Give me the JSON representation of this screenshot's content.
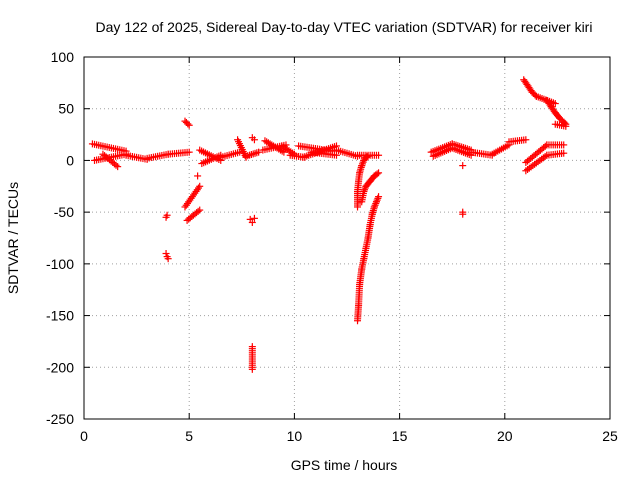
{
  "chart_data": {
    "type": "scatter",
    "title": "Day 122 of 2025, Sidereal Day-to-day VTEC variation (SDTVAR) for receiver kiri",
    "xlabel": "GPS time / hours",
    "ylabel": "SDTVAR / TECUs",
    "xlim": [
      0,
      25
    ],
    "ylim": [
      -250,
      100
    ],
    "xticks": [
      0,
      5,
      10,
      15,
      20,
      25
    ],
    "yticks": [
      -250,
      -200,
      -150,
      -100,
      -50,
      0,
      50,
      100
    ],
    "grid": true,
    "marker": "+",
    "marker_color": "#ff0000",
    "segments": [
      {
        "x0": 0.4,
        "y0": 16,
        "x1": 2.0,
        "y1": 9
      },
      {
        "x0": 0.5,
        "y0": 0,
        "x1": 2.0,
        "y1": 6
      },
      {
        "x0": 0.9,
        "y0": 6,
        "x1": 1.6,
        "y1": -6
      },
      {
        "x0": 2.0,
        "y0": 5,
        "x1": 3.0,
        "y1": 1
      },
      {
        "x0": 3.0,
        "y0": 2,
        "x1": 4.0,
        "y1": 6
      },
      {
        "x0": 4.0,
        "y0": 6,
        "x1": 5.0,
        "y1": 8
      },
      {
        "x0": 4.8,
        "y0": 38,
        "x1": 5.0,
        "y1": 34
      },
      {
        "x0": 4.8,
        "y0": -45,
        "x1": 5.5,
        "y1": -25
      },
      {
        "x0": 4.9,
        "y0": -58,
        "x1": 5.5,
        "y1": -48
      },
      {
        "x0": 5.5,
        "y0": 10,
        "x1": 6.5,
        "y1": 0
      },
      {
        "x0": 5.6,
        "y0": -3,
        "x1": 6.5,
        "y1": 5
      },
      {
        "x0": 6.5,
        "y0": 3,
        "x1": 7.4,
        "y1": 8
      },
      {
        "x0": 7.3,
        "y0": 20,
        "x1": 7.7,
        "y1": 3
      },
      {
        "x0": 7.7,
        "y0": 4,
        "x1": 8.3,
        "y1": 8
      },
      {
        "x0": 8.0,
        "y0": -180,
        "x1": 8.0,
        "y1": -202
      },
      {
        "x0": 8.5,
        "y0": 10,
        "x1": 9.6,
        "y1": 15
      },
      {
        "x0": 8.6,
        "y0": 19,
        "x1": 9.5,
        "y1": 8
      },
      {
        "x0": 9.4,
        "y0": 14,
        "x1": 10.0,
        "y1": 6
      },
      {
        "x0": 9.8,
        "y0": 5,
        "x1": 10.5,
        "y1": 3
      },
      {
        "x0": 10.2,
        "y0": 14,
        "x1": 11.8,
        "y1": 9
      },
      {
        "x0": 10.4,
        "y0": 3,
        "x1": 12.0,
        "y1": 14
      },
      {
        "x0": 10.8,
        "y0": 8,
        "x1": 12.0,
        "y1": 5
      },
      {
        "x0": 12.0,
        "y0": 10,
        "x1": 13.0,
        "y1": 4
      },
      {
        "x0": 13.0,
        "y0": 5,
        "x1": 14.0,
        "y1": 5
      },
      {
        "x0": 16.5,
        "y0": 8,
        "x1": 17.5,
        "y1": 16
      },
      {
        "x0": 16.6,
        "y0": 4,
        "x1": 17.5,
        "y1": 12
      },
      {
        "x0": 17.5,
        "y0": 16,
        "x1": 18.4,
        "y1": 10
      },
      {
        "x0": 17.5,
        "y0": 12,
        "x1": 18.4,
        "y1": 5
      },
      {
        "x0": 18.4,
        "y0": 8,
        "x1": 19.4,
        "y1": 5
      },
      {
        "x0": 19.4,
        "y0": 6,
        "x1": 20.2,
        "y1": 15
      },
      {
        "x0": 20.2,
        "y0": 18,
        "x1": 21.0,
        "y1": 20
      },
      {
        "x0": 21.0,
        "y0": -2,
        "x1": 22.0,
        "y1": 15
      },
      {
        "x0": 21.0,
        "y0": -10,
        "x1": 22.0,
        "y1": 5
      },
      {
        "x0": 22.0,
        "y0": 15,
        "x1": 22.8,
        "y1": 15
      },
      {
        "x0": 22.0,
        "y0": 5,
        "x1": 22.8,
        "y1": 7
      },
      {
        "x0": 21.5,
        "y0": 62,
        "x1": 22.4,
        "y1": 55
      },
      {
        "x0": 22.4,
        "y0": 35,
        "x1": 22.9,
        "y1": 33
      }
    ],
    "curves": [
      {
        "x": [
          20.9,
          21.1,
          21.3,
          21.5
        ],
        "y": [
          78,
          72,
          66,
          62
        ]
      },
      {
        "x": [
          22.0,
          22.2,
          22.4,
          22.6,
          22.8,
          22.9
        ],
        "y": [
          58,
          52,
          46,
          41,
          37,
          35
        ]
      },
      {
        "x": [
          13.0,
          13.0,
          13.05,
          13.1,
          13.2,
          13.3,
          13.4,
          13.5
        ],
        "y": [
          -45,
          -30,
          -20,
          -12,
          -5,
          0,
          3,
          4
        ]
      },
      {
        "x": [
          13.0,
          13.05,
          13.1,
          13.2,
          13.3,
          13.4,
          13.5,
          13.6,
          13.7,
          13.8,
          13.9,
          14.0
        ],
        "y": [
          -155,
          -140,
          -120,
          -105,
          -95,
          -85,
          -75,
          -62,
          -52,
          -45,
          -40,
          -35
        ]
      },
      {
        "x": [
          13.2,
          13.3,
          13.4,
          13.6,
          13.8,
          14.0
        ],
        "y": [
          -40,
          -30,
          -25,
          -20,
          -15,
          -12
        ]
      }
    ],
    "points": [
      {
        "x": 3.9,
        "y": -55
      },
      {
        "x": 3.95,
        "y": -53
      },
      {
        "x": 3.9,
        "y": -90
      },
      {
        "x": 3.95,
        "y": -93
      },
      {
        "x": 4.0,
        "y": -95
      },
      {
        "x": 5.4,
        "y": -15
      },
      {
        "x": 7.9,
        "y": -57
      },
      {
        "x": 8.0,
        "y": -60
      },
      {
        "x": 8.1,
        "y": -56
      },
      {
        "x": 8.0,
        "y": 22
      },
      {
        "x": 8.1,
        "y": 20
      },
      {
        "x": 18.0,
        "y": -52
      },
      {
        "x": 18.0,
        "y": -50
      },
      {
        "x": 18.0,
        "y": -5
      }
    ]
  }
}
